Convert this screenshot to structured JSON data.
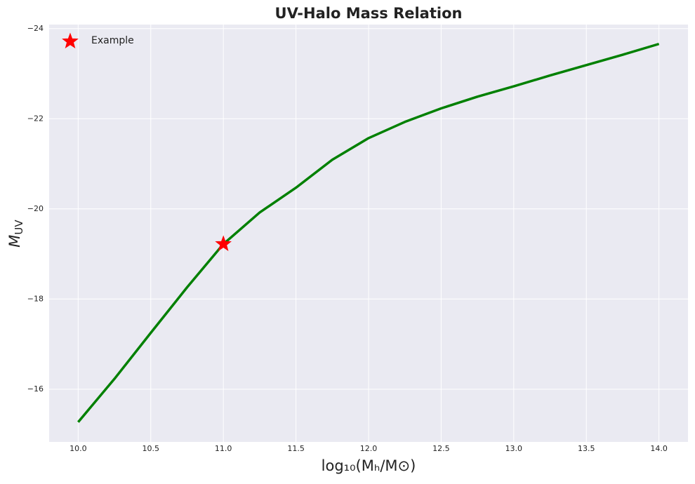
{
  "chart_data": {
    "type": "line",
    "title": "UV-Halo Mass Relation",
    "xlabel": "log₁₀(Mₕ/M⊙)",
    "ylabel": {
      "symbol": "M",
      "subscript": "UV"
    },
    "x": [
      10,
      10.25,
      10.5,
      10.75,
      11,
      11.25,
      11.5,
      11.75,
      12,
      12.25,
      12.5,
      12.75,
      13,
      13.25,
      13.5,
      13.75,
      14
    ],
    "series": [
      {
        "color": "#008000",
        "values": [
          -15.27,
          -16.23,
          -17.25,
          -18.26,
          -19.22,
          -19.92,
          -20.47,
          -21.09,
          -21.57,
          -21.93,
          -22.23,
          -22.49,
          -22.72,
          -22.96,
          -23.19,
          -23.42,
          -23.66
        ]
      }
    ],
    "points": {
      "name": "Example",
      "color": "#ff0000",
      "marker": "star",
      "x": [
        11
      ],
      "values": [
        -19.22
      ]
    },
    "xlim": [
      9.8,
      14.2
    ],
    "ylim": [
      -14.83,
      -24.09
    ],
    "xticks": [
      {
        "value": 10,
        "label": "10.0"
      },
      {
        "value": 10.5,
        "label": "10.5"
      },
      {
        "value": 11,
        "label": "11.0"
      },
      {
        "value": 11.5,
        "label": "11.5"
      },
      {
        "value": 12,
        "label": "12.0"
      },
      {
        "value": 12.5,
        "label": "12.5"
      },
      {
        "value": 13,
        "label": "13.0"
      },
      {
        "value": 13.5,
        "label": "13.5"
      },
      {
        "value": 14,
        "label": "14.0"
      }
    ],
    "yticks": [
      {
        "value": -16,
        "label": "−16"
      },
      {
        "value": -18,
        "label": "−18"
      },
      {
        "value": -20,
        "label": "−20"
      },
      {
        "value": -22,
        "label": "−22"
      },
      {
        "value": -24,
        "label": "−24"
      }
    ],
    "grid": true,
    "legend": "upper left"
  }
}
